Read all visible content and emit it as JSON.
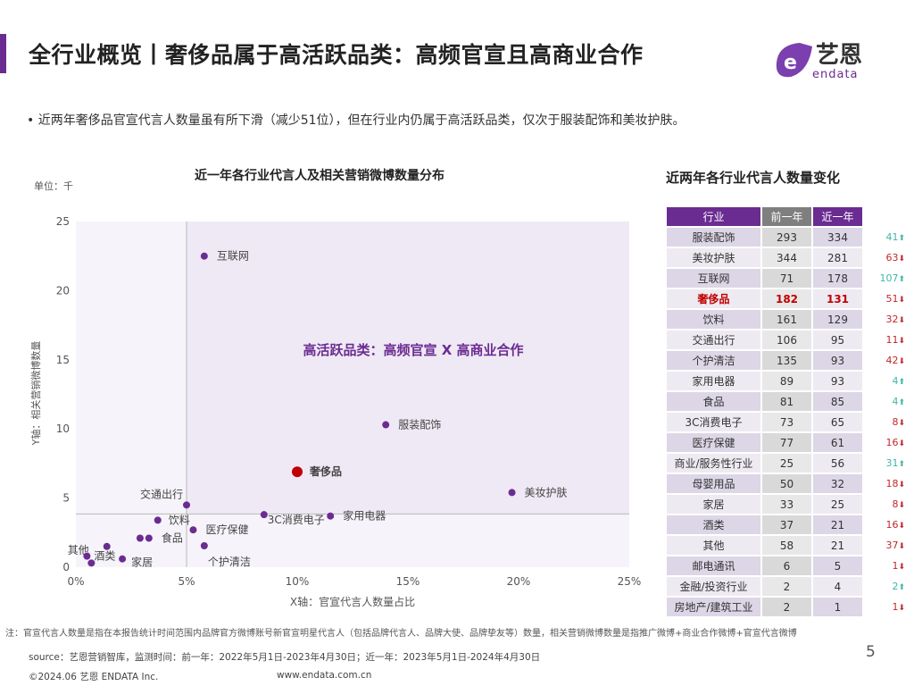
{
  "header": {
    "title": "全行业概览丨奢侈品属于高活跃品类：高频官宣且高商业合作",
    "logo_text": "艺恩",
    "logo_sub": "endata",
    "accent": "#6b2c91"
  },
  "bullet": "•  近两年奢侈品官宣代言人数量虽有所下滑（减少51位），但在行业内仍属于高活跃品类，仅次于服装配饰和美妆护肤。",
  "chart_data": {
    "type": "scatter",
    "title": "近一年各行业代言人及相关营销微博数量分布",
    "unit": "单位：千",
    "xlabel": "X轴：官宣代言人数量占比",
    "ylabel": "Y轴：相关营销微博数量",
    "xlim": [
      0,
      25
    ],
    "ylim": [
      0,
      25
    ],
    "xticks": [
      "0%",
      "5%",
      "10%",
      "15%",
      "20%",
      "25%"
    ],
    "yticks": [
      "0",
      "5",
      "10",
      "15",
      "20",
      "25"
    ],
    "reference_lines": {
      "x": 5,
      "y": 3.85
    },
    "quadrant_label": "高活跃品类：高频官宣 X 高商业合作",
    "highlight_color": "#c00000",
    "point_color": "#6b2c91",
    "points": [
      {
        "label": "互联网",
        "x": 5.8,
        "y": 22.5
      },
      {
        "label": "服装配饰",
        "x": 14.0,
        "y": 10.3
      },
      {
        "label": "奢侈品",
        "x": 10.0,
        "y": 6.9,
        "highlight": true
      },
      {
        "label": "美妆护肤",
        "x": 19.7,
        "y": 5.4
      },
      {
        "label": "交通出行",
        "x": 5.0,
        "y": 4.5
      },
      {
        "label": "3C消费电子",
        "x": 8.5,
        "y": 3.8
      },
      {
        "label": "家用电器",
        "x": 11.5,
        "y": 3.7
      },
      {
        "label": "饮料",
        "x": 3.7,
        "y": 3.4
      },
      {
        "label": "医疗保健",
        "x": 5.3,
        "y": 2.7
      },
      {
        "label": "食品",
        "x": 3.3,
        "y": 2.1
      },
      {
        "label": "",
        "x": 2.9,
        "y": 2.1
      },
      {
        "label": "个护清洁",
        "x": 5.8,
        "y": 1.55
      },
      {
        "label": "其他",
        "x": 1.4,
        "y": 1.5
      },
      {
        "label": "酒类",
        "x": 0.5,
        "y": 0.8
      },
      {
        "label": "",
        "x": 0.7,
        "y": 0.3
      },
      {
        "label": "家居",
        "x": 2.1,
        "y": 0.6
      }
    ]
  },
  "table": {
    "title": "近两年各行业代言人数量变化",
    "headers": [
      "行业",
      "前一年",
      "近一年"
    ],
    "rows": [
      {
        "name": "服装配饰",
        "prev": "293",
        "curr": "334",
        "change": "41",
        "dir": "up"
      },
      {
        "name": "美妆护肤",
        "prev": "344",
        "curr": "281",
        "change": "63",
        "dir": "down"
      },
      {
        "name": "互联网",
        "prev": "71",
        "curr": "178",
        "change": "107",
        "dir": "up"
      },
      {
        "name": "奢侈品",
        "prev": "182",
        "curr": "131",
        "change": "51",
        "dir": "down",
        "highlight": true
      },
      {
        "name": "饮料",
        "prev": "161",
        "curr": "129",
        "change": "32",
        "dir": "down"
      },
      {
        "name": "交通出行",
        "prev": "106",
        "curr": "95",
        "change": "11",
        "dir": "down"
      },
      {
        "name": "个护清洁",
        "prev": "135",
        "curr": "93",
        "change": "42",
        "dir": "down"
      },
      {
        "name": "家用电器",
        "prev": "89",
        "curr": "93",
        "change": "4",
        "dir": "up"
      },
      {
        "name": "食品",
        "prev": "81",
        "curr": "85",
        "change": "4",
        "dir": "up"
      },
      {
        "name": "3C消费电子",
        "prev": "73",
        "curr": "65",
        "change": "8",
        "dir": "down"
      },
      {
        "name": "医疗保健",
        "prev": "77",
        "curr": "61",
        "change": "16",
        "dir": "down"
      },
      {
        "name": "商业/服务性行业",
        "prev": "25",
        "curr": "56",
        "change": "31",
        "dir": "up"
      },
      {
        "name": "母婴用品",
        "prev": "50",
        "curr": "32",
        "change": "18",
        "dir": "down"
      },
      {
        "name": "家居",
        "prev": "33",
        "curr": "25",
        "change": "8",
        "dir": "down"
      },
      {
        "name": "酒类",
        "prev": "37",
        "curr": "21",
        "change": "16",
        "dir": "down"
      },
      {
        "name": "其他",
        "prev": "58",
        "curr": "21",
        "change": "37",
        "dir": "down"
      },
      {
        "name": "邮电通讯",
        "prev": "6",
        "curr": "5",
        "change": "1",
        "dir": "down"
      },
      {
        "name": "金融/投资行业",
        "prev": "2",
        "curr": "4",
        "change": "2",
        "dir": "up"
      },
      {
        "name": "房地产/建筑工业",
        "prev": "2",
        "curr": "1",
        "change": "1",
        "dir": "down"
      }
    ]
  },
  "footer": {
    "note": "注：官宣代言人数量是指在本报告统计时间范围内品牌官方微博账号新官宣明星代言人（包括品牌代言人、品牌大使、品牌挚友等）数量，相关营销微博数量是指推广微博+商业合作微博+官宣代言微博",
    "source": "source：艺恩营销智库，监测时间：前一年：2022年5月1日-2023年4月30日；近一年：2023年5月1日-2024年4月30日",
    "copyright": "©2024.06 艺恩 ENDATA Inc.",
    "website": "www.endata.com.cn",
    "page": "5"
  }
}
